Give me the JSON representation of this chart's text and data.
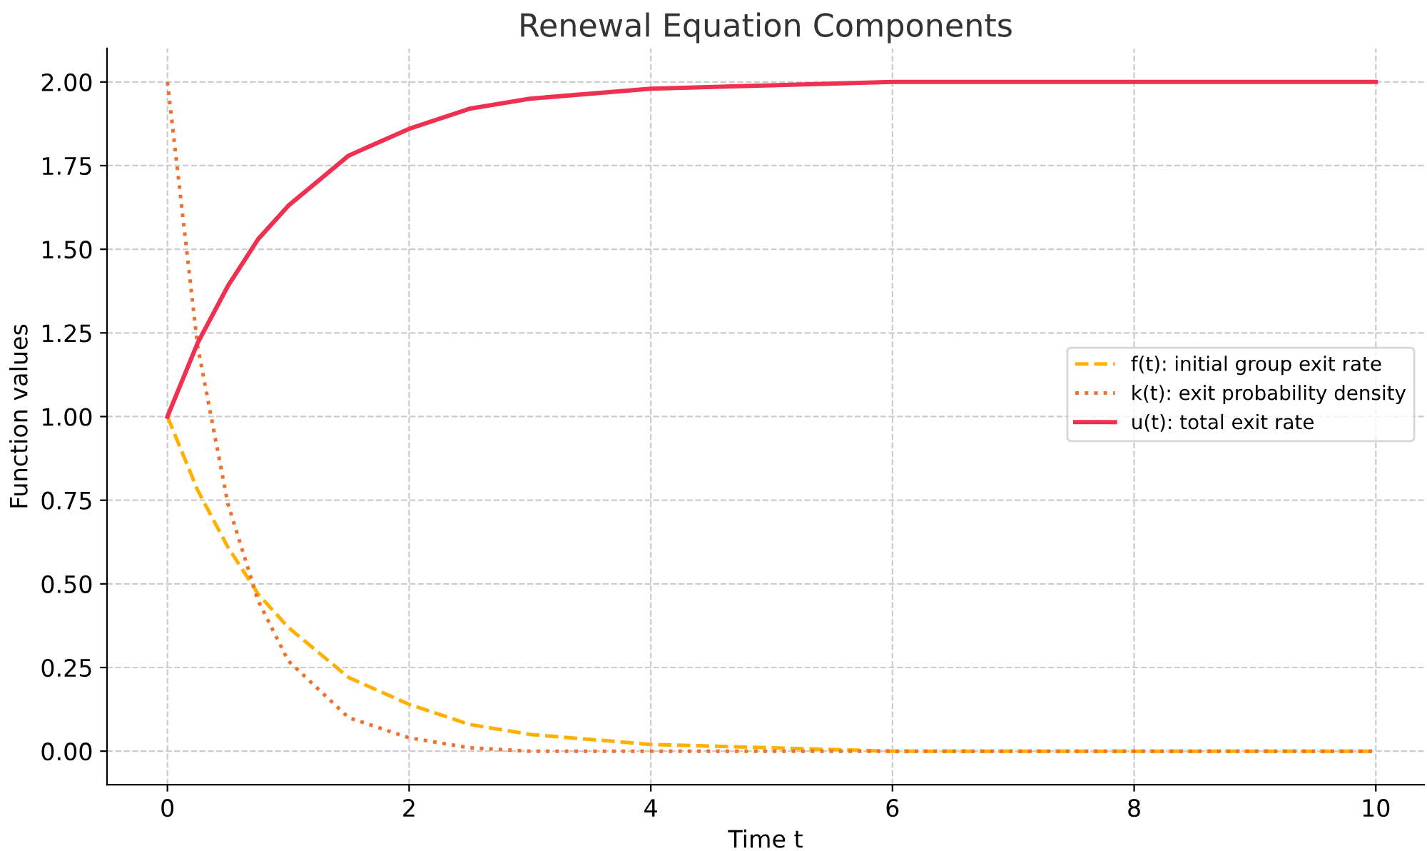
{
  "chart_data": {
    "type": "line",
    "title": "Renewal Equation Components",
    "xlabel": "Time t",
    "ylabel": "Function values",
    "x": [
      0,
      0.25,
      0.5,
      0.75,
      1,
      1.5,
      2,
      2.5,
      3,
      4,
      5,
      6,
      8,
      10
    ],
    "series": [
      {
        "name": "f(t): initial group exit rate",
        "color": "#ffb000",
        "line_style": "dashed",
        "values": [
          1,
          0.78,
          0.61,
          0.47,
          0.37,
          0.22,
          0.14,
          0.08,
          0.05,
          0.02,
          0.01,
          0,
          0,
          0
        ]
      },
      {
        "name": "k(t): exit probability density",
        "color": "#f07030",
        "line_style": "dotted",
        "values": [
          2,
          1.21,
          0.74,
          0.45,
          0.27,
          0.1,
          0.04,
          0.01,
          0,
          0,
          0,
          0,
          0,
          0
        ]
      },
      {
        "name": "u(t): total exit rate",
        "color": "#f03050",
        "line_style": "solid",
        "values": [
          1,
          1.22,
          1.39,
          1.53,
          1.63,
          1.78,
          1.86,
          1.92,
          1.95,
          1.98,
          1.99,
          2,
          2,
          2
        ]
      }
    ],
    "xlim": [
      -0.5,
      10.4
    ],
    "ylim": [
      -0.1,
      2.1
    ],
    "xticks": [
      0,
      2,
      4,
      6,
      8,
      10
    ],
    "yticks": [
      {
        "value": 0,
        "label": "0.00"
      },
      {
        "value": 0.25,
        "label": "0.25"
      },
      {
        "value": 0.5,
        "label": "0.50"
      },
      {
        "value": 0.75,
        "label": "0.75"
      },
      {
        "value": 1,
        "label": "1.00"
      },
      {
        "value": 1.25,
        "label": "1.25"
      },
      {
        "value": 1.5,
        "label": "1.50"
      },
      {
        "value": 1.75,
        "label": "1.75"
      },
      {
        "value": 2,
        "label": "2.00"
      }
    ],
    "grid": true,
    "legend": "right",
    "marker": "none"
  }
}
